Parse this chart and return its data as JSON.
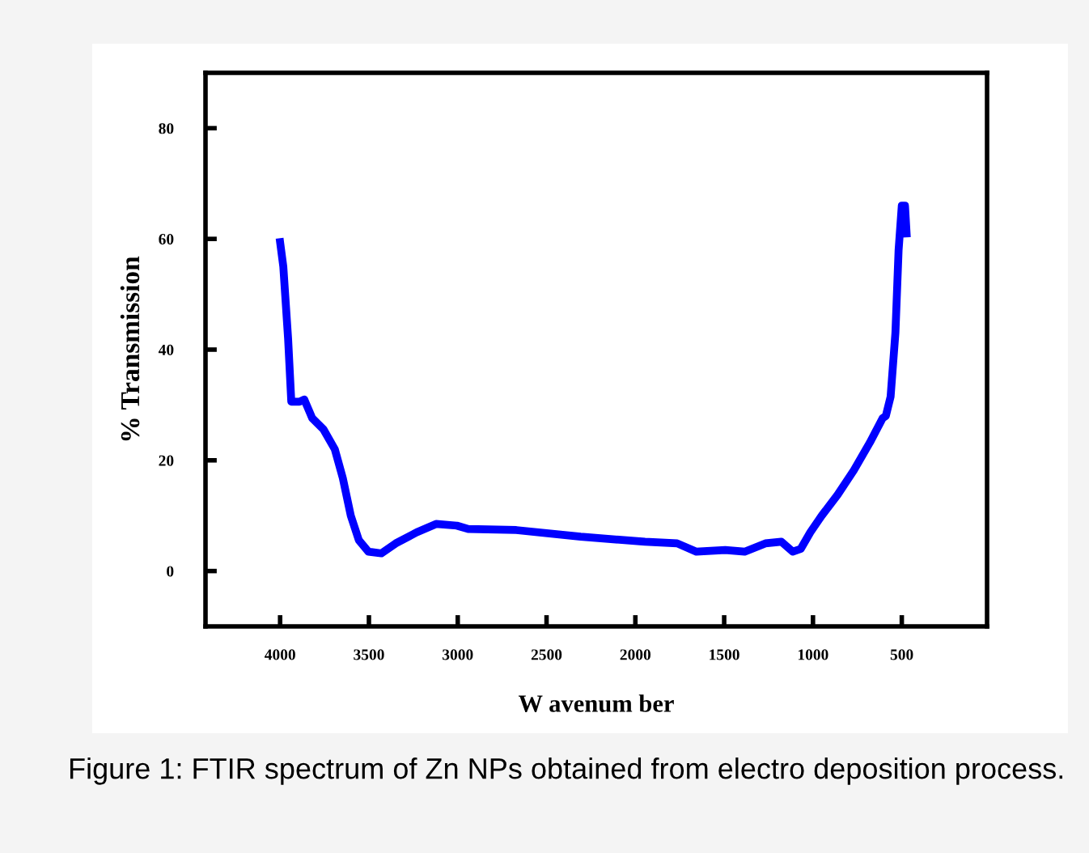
{
  "chart_data": {
    "type": "line",
    "xlabel": "W avenum ber",
    "ylabel": "% Transmission",
    "annotations": [
      "Figure 1: FTIR spectrum of Zn NPs obtained from electro deposition process."
    ],
    "x": [
      4000,
      3982,
      3955,
      3937,
      3891,
      3864,
      3819,
      3756,
      3692,
      3647,
      3602,
      3557,
      3503,
      3430,
      3349,
      3231,
      3122,
      3005,
      2941,
      2670,
      2308,
      1946,
      1765,
      1656,
      1494,
      1385,
      1268,
      1178,
      1114,
      1069,
      1015,
      951,
      861,
      770,
      680,
      608,
      590,
      563,
      536,
      518,
      500,
      482,
      473
    ],
    "series": [
      {
        "color": "#0000ff",
        "values": [
          59.4,
          55,
          42,
          30.6,
          30.6,
          31,
          27.6,
          25.6,
          22,
          16.8,
          10,
          5.6,
          3.5,
          3.2,
          5,
          7,
          8.5,
          8.2,
          7.6,
          7.4,
          6.2,
          5.3,
          5,
          3.5,
          3.8,
          3.5,
          5,
          5.3,
          3.5,
          4,
          7,
          10,
          13.8,
          18.2,
          23.2,
          27.6,
          28,
          31.5,
          43,
          58,
          66,
          66,
          61
        ]
      }
    ],
    "xlim": [
      4420,
      20
    ],
    "ylim": [
      -10,
      90
    ],
    "xticks": [
      4000,
      3500,
      3000,
      2500,
      2000,
      1500,
      1000,
      500
    ],
    "yticks": [
      0,
      20,
      40,
      60,
      80
    ],
    "grid": false,
    "legend": false,
    "marker": "none",
    "line_style": "solid"
  }
}
